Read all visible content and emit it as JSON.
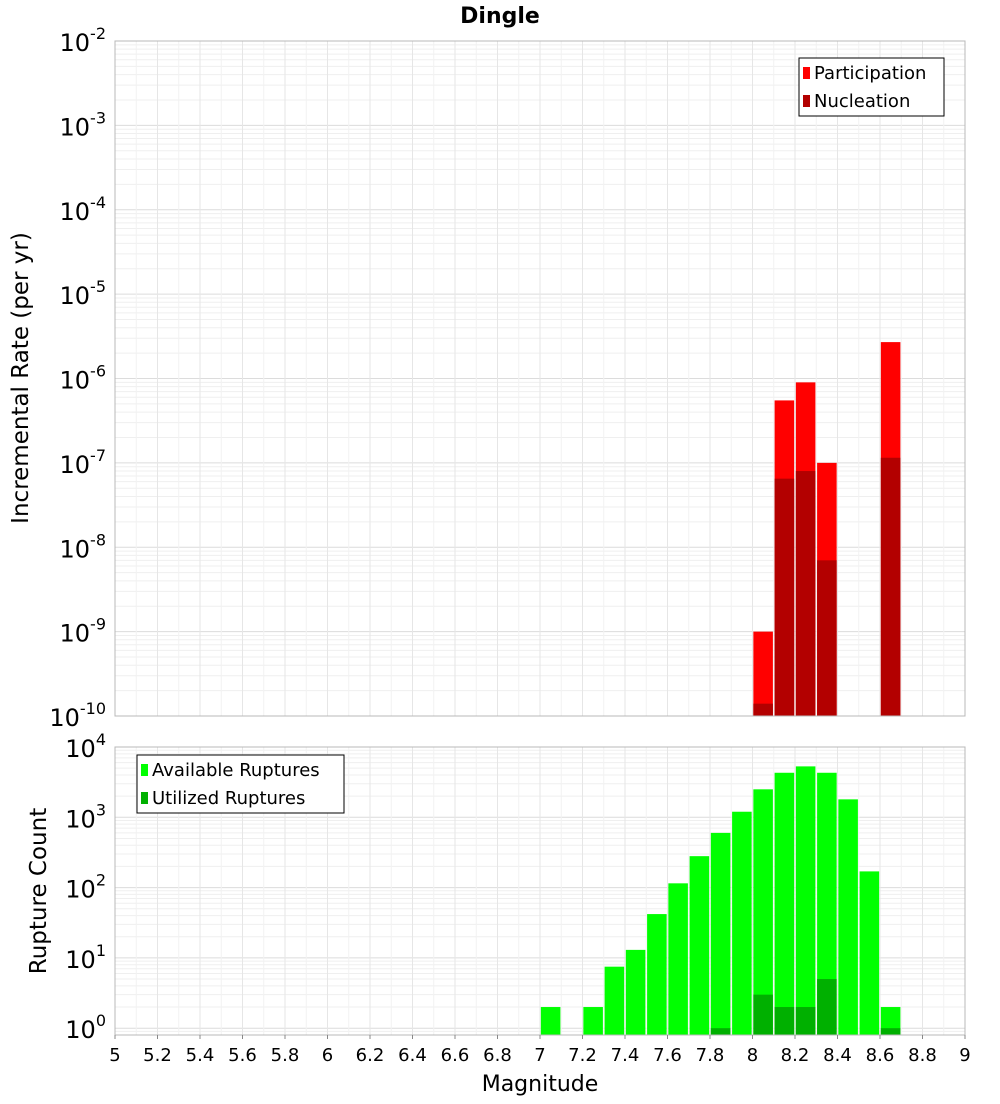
{
  "chart_data": [
    {
      "type": "bar",
      "title": "Dingle",
      "ylabel": "Incremental Rate (per yr)",
      "xlabel": "",
      "y_scale": "log",
      "ylim": [
        1e-10,
        0.01
      ],
      "xlim": [
        5,
        9
      ],
      "y_tick_exponents": [
        -10,
        -9,
        -8,
        -7,
        -6,
        -5,
        -4,
        -3,
        -2
      ],
      "grid": true,
      "legend_position": "top-right",
      "colors": {
        "Participation": "#ff0000",
        "Nucleation": "#b30000"
      },
      "series": [
        {
          "name": "Participation",
          "x": [
            8.05,
            8.15,
            8.25,
            8.35,
            8.65
          ],
          "values": [
            1e-09,
            5.5e-07,
            9e-07,
            1e-07,
            2.7e-06
          ]
        },
        {
          "name": "Nucleation",
          "x": [
            8.05,
            8.15,
            8.25,
            8.35,
            8.65
          ],
          "values": [
            1.4e-10,
            6.5e-08,
            8e-08,
            7e-09,
            1.15e-07
          ]
        }
      ]
    },
    {
      "type": "bar",
      "title": "",
      "ylabel": "Rupture Count",
      "xlabel": "Magnitude",
      "y_scale": "log",
      "ylim": [
        0.8,
        10000
      ],
      "xlim": [
        5,
        9
      ],
      "y_tick_exponents": [
        0,
        1,
        2,
        3,
        4
      ],
      "x_ticks": [
        "5",
        "5.2",
        "5.4",
        "5.6",
        "5.8",
        "6",
        "6.2",
        "6.4",
        "6.6",
        "6.8",
        "7",
        "7.2",
        "7.4",
        "7.6",
        "7.8",
        "8",
        "8.2",
        "8.4",
        "8.6",
        "8.8",
        "9"
      ],
      "grid": true,
      "legend_position": "top-left",
      "colors": {
        "Available Ruptures": "#00ff00",
        "Utilized Ruptures": "#00b000"
      },
      "series": [
        {
          "name": "Available Ruptures",
          "x": [
            7.05,
            7.25,
            7.35,
            7.45,
            7.55,
            7.65,
            7.75,
            7.85,
            7.95,
            8.05,
            8.15,
            8.25,
            8.35,
            8.45,
            8.55,
            8.65
          ],
          "values": [
            2,
            2,
            7.5,
            13,
            42,
            115,
            280,
            600,
            1200,
            2500,
            4300,
            5300,
            4300,
            1800,
            170,
            2
          ]
        },
        {
          "name": "Utilized Ruptures",
          "x": [
            7.85,
            8.05,
            8.15,
            8.25,
            8.35,
            8.65
          ],
          "values": [
            1,
            3,
            2,
            2,
            5,
            1
          ]
        }
      ]
    }
  ]
}
